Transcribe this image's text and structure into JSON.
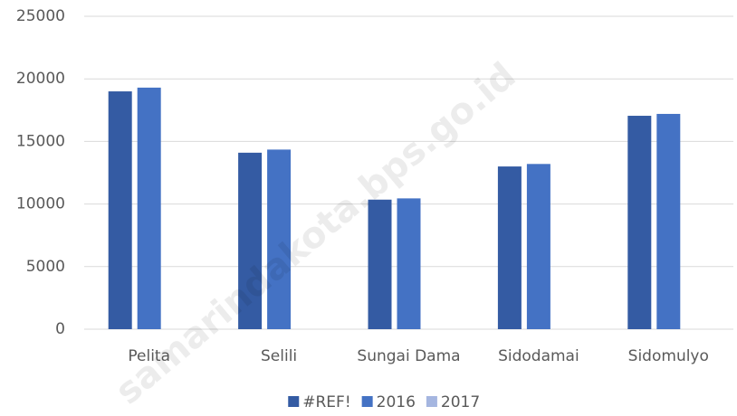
{
  "chart_data": {
    "type": "bar",
    "categories": [
      "Pelita",
      "Selili",
      "Sungai Dama",
      "Sidodamai",
      "Sidomulyo"
    ],
    "series": [
      {
        "name": "#REF!",
        "color": "#345ba3",
        "values": [
          19000,
          14100,
          10350,
          13000,
          17050
        ]
      },
      {
        "name": "2016",
        "color": "#4472c4",
        "values": [
          19300,
          14350,
          10450,
          13200,
          17200
        ]
      },
      {
        "name": "2017",
        "color": "#a5b6e0",
        "values": [
          null,
          null,
          null,
          null,
          null
        ]
      }
    ],
    "ylim": [
      0,
      25000
    ],
    "yticks": [
      0,
      5000,
      10000,
      15000,
      20000,
      25000
    ],
    "grid": true,
    "legend": "bottom",
    "watermark": "samarindakota.bps.go.id"
  }
}
